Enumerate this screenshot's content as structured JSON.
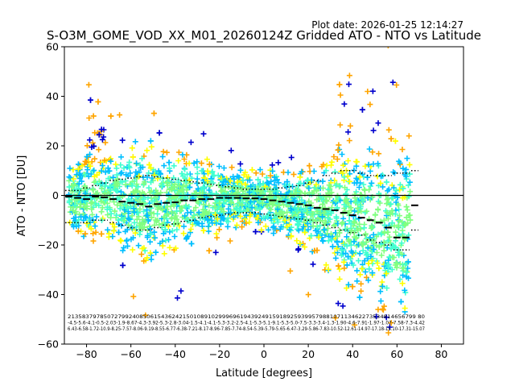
{
  "plot_date": "Plot date: 2026-01-25 12:14:27",
  "chart_data": {
    "type": "scatter",
    "title": "S-O3M_GOME_VOD_XX_M01_20260124Z Gridded ATO - NTO vs Latitude",
    "xlabel": "Latitude [degrees]",
    "ylabel": "ATO - NTO [DU]",
    "xlim": [
      -90,
      90
    ],
    "ylim": [
      -60,
      60
    ],
    "xticks": [
      -80,
      -60,
      -40,
      -20,
      0,
      20,
      40,
      60,
      80
    ],
    "yticks": [
      -60,
      -40,
      -20,
      0,
      20,
      40,
      60
    ],
    "grid": false,
    "marker": "+",
    "colors": [
      "#0000cd",
      "#00bfff",
      "#40ffd0",
      "#80ff80",
      "#ffff00",
      "#ffa500"
    ],
    "zero_line": 0,
    "mean_line_x": [
      -88,
      -84,
      -80,
      -76,
      -72,
      -68,
      -64,
      -60,
      -56,
      -52,
      -48,
      -44,
      -40,
      -36,
      -32,
      -28,
      -24,
      -20,
      -16,
      -12,
      -8,
      -4,
      0,
      4,
      8,
      12,
      16,
      20,
      24,
      28,
      32,
      36,
      40,
      44,
      48,
      52,
      56,
      60,
      64,
      68
    ],
    "mean_line_y": [
      -0.5,
      -1,
      -1.5,
      -0.5,
      -0.8,
      -1.5,
      -2.5,
      -3,
      -3.5,
      -4.5,
      -3.5,
      -3,
      -2.8,
      -2,
      -2,
      -1.5,
      -1.5,
      -1,
      -1,
      -1,
      -1.2,
      -1.2,
      -1.5,
      -2,
      -2.5,
      -3,
      -3.5,
      -4,
      -5,
      -5.5,
      -6,
      -7,
      -8,
      -9,
      -10,
      -11,
      -13,
      -17,
      -17,
      -4
    ],
    "upper_std_y": [
      2,
      2,
      3,
      4,
      5,
      6,
      6.5,
      7,
      7.5,
      8,
      7.5,
      7,
      6.5,
      6,
      5.5,
      5,
      4.5,
      4,
      3.5,
      3,
      2.5,
      2.5,
      2.5,
      2.5,
      3,
      3.5,
      4,
      5,
      6,
      8,
      9,
      10,
      10,
      9,
      8,
      8,
      8,
      9,
      9,
      10
    ],
    "lower_std_y": [
      -11,
      -11,
      -11,
      -10,
      -10,
      -11,
      -12,
      -13,
      -14,
      -14,
      -13,
      -12,
      -11.5,
      -10.5,
      -10,
      -9,
      -8.5,
      -8,
      -7.5,
      -7,
      -7,
      -7,
      -7.5,
      -8,
      -8.5,
      -9,
      -9.5,
      -10,
      -11,
      -12,
      -13,
      -14,
      -15,
      -16,
      -18,
      -19,
      -20,
      -22,
      -22,
      -14
    ],
    "annotation_rows": [
      "2135837978507279924085061543624215010891029996961943924915918925939957988107113462273534814656799 80",
      "-4.5-5.6-4.1-0.5-2.03-1.9-8.67-4.3-3.92-5.3-2.8-3.04-1.5-4.1-4.1-5.3-3.2-2.5-4.1-5.3-5.1-9.1-5.3-5.0-7.5-3.3-3.4-1.3-1.90-4.6-7.91-1.97-1.07-7.58-7.3-4.42",
      "6.43-6.58-1.72-10.9-8.25-7.57-8.06-9.19-8.55-6.77-6.38-7.21-8.17-8.96-7.85-7.74-8.54-5.39-5.79-5.65-6.47-3.29-5.86-7.83-10.52-12.61-14.97-17.18-15.10-17.31-15.07"
    ]
  }
}
